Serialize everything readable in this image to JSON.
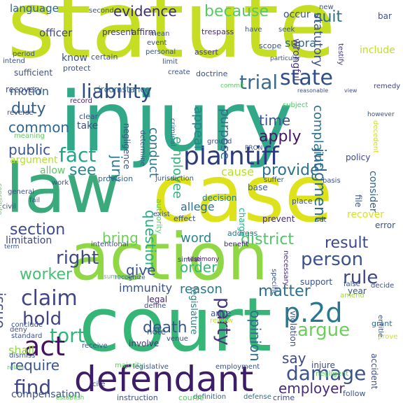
{
  "background": "#ffffff",
  "palette": [
    "#440154",
    "#3b528b",
    "#21918c",
    "#31b57b",
    "#5ec962",
    "#b5de2b",
    "#d8e219",
    "#fde725"
  ],
  "words": [
    {
      "text": "statute",
      "color": "#c5dd23"
    },
    {
      "text": "injury",
      "color": "#31a888"
    },
    {
      "text": "case",
      "color": "#dde21a"
    },
    {
      "text": "law",
      "color": "#3aaa7c"
    },
    {
      "text": "action",
      "color": "#8fd744"
    },
    {
      "text": "court",
      "color": "#36b676"
    },
    {
      "text": "defendant",
      "color": "#3d1d67"
    },
    {
      "text": "plaintiff",
      "color": "#2a3a7c"
    },
    {
      "text": "state",
      "color": "#2f4f8a"
    },
    {
      "text": "liability",
      "color": "#2c4a83"
    },
    {
      "text": "trial",
      "color": "#3b6a8d"
    },
    {
      "text": "because",
      "color": "#5ac864"
    },
    {
      "text": "evidence",
      "color": "#3c2f6f"
    },
    {
      "text": "suit",
      "color": "#2d6f8e"
    },
    {
      "text": "language",
      "color": "#31658e"
    },
    {
      "text": "statutory",
      "color": "#3b518b"
    },
    {
      "text": "supra",
      "color": "#31688e"
    },
    {
      "text": "wrongful",
      "color": "#443983"
    },
    {
      "text": "duty",
      "color": "#34608d"
    },
    {
      "text": "conduct",
      "color": "#2a788e"
    },
    {
      "text": "appeal",
      "color": "#26828e"
    },
    {
      "text": "time",
      "color": "#3a538b"
    },
    {
      "text": "complaint",
      "color": "#2c728e"
    },
    {
      "text": "common",
      "color": "#31688e"
    },
    {
      "text": "motion",
      "color": "#32648e"
    },
    {
      "text": "public",
      "color": "#3a548c"
    },
    {
      "text": "fact",
      "color": "#21a585"
    },
    {
      "text": "employee",
      "color": "#2db27d"
    },
    {
      "text": "purpose",
      "color": "#2e6e8e"
    },
    {
      "text": "apply",
      "color": "#481467"
    },
    {
      "text": "judgment",
      "color": "#2f6c8e"
    },
    {
      "text": "see",
      "color": "#23898e"
    },
    {
      "text": "jury",
      "color": "#2a778e"
    },
    {
      "text": "provide",
      "color": "#2c728e"
    },
    {
      "text": "section",
      "color": "#3e4a89"
    },
    {
      "text": "question",
      "color": "#28ae80"
    },
    {
      "text": "district",
      "color": "#50c46a"
    },
    {
      "text": "result",
      "color": "#3e4989"
    },
    {
      "text": "right",
      "color": "#3e4989"
    },
    {
      "text": "bring",
      "color": "#6ccd5a"
    },
    {
      "text": "person",
      "color": "#3b528b"
    },
    {
      "text": "worker",
      "color": "#44bf70"
    },
    {
      "text": "order",
      "color": "#35b779"
    },
    {
      "text": "give",
      "color": "#3b528b"
    },
    {
      "text": "rule",
      "color": "#3f4788"
    },
    {
      "text": "claim",
      "color": "#414487"
    },
    {
      "text": "immunity",
      "color": "#3a548c"
    },
    {
      "text": "matter",
      "color": "#2e6e8e"
    },
    {
      "text": "hold",
      "color": "#414487"
    },
    {
      "text": "party",
      "color": "#453581"
    },
    {
      "text": "p.2d",
      "color": "#2a768e"
    },
    {
      "text": "tort",
      "color": "#31b57b"
    },
    {
      "text": "argue",
      "color": "#6ccd5a"
    },
    {
      "text": "act",
      "color": "#471063"
    },
    {
      "text": "death",
      "color": "#39568c"
    },
    {
      "text": "damage",
      "color": "#3b528b"
    },
    {
      "text": "require",
      "color": "#39568c"
    },
    {
      "text": "opinion",
      "color": "#2f6c8e"
    },
    {
      "text": "find",
      "color": "#414487"
    },
    {
      "text": "employer",
      "color": "#472a7a"
    },
    {
      "text": "say",
      "color": "#3e4989"
    },
    {
      "text": "issue",
      "color": "#3e4989"
    },
    {
      "text": "cause",
      "color": "#b8de29"
    },
    {
      "text": "allege",
      "color": "#2e6e8e"
    },
    {
      "text": "reason",
      "color": "#2a788e"
    },
    {
      "text": "word",
      "color": "#24878e"
    },
    {
      "text": "legislature",
      "color": "#25848e"
    },
    {
      "text": "shall",
      "color": "#95d840"
    },
    {
      "text": "compensation",
      "color": "#3a548c"
    },
    {
      "text": "limitation",
      "color": "#3f4889"
    },
    {
      "text": "argument",
      "color": "#b5de2b"
    },
    {
      "text": "circumstance",
      "color": "#2f6b8e"
    },
    {
      "text": "recovery",
      "color": "#3e4a89"
    },
    {
      "text": "negligence",
      "color": "#3b528b"
    },
    {
      "text": "present",
      "color": "#453882"
    },
    {
      "text": "affirm",
      "color": "#482777"
    },
    {
      "text": "officer",
      "color": "#3f4788"
    },
    {
      "text": "know",
      "color": "#3b528b"
    },
    {
      "text": "certain",
      "color": "#3b528b"
    },
    {
      "text": "trespass",
      "color": "#482878"
    },
    {
      "text": "assert",
      "color": "#453882"
    },
    {
      "text": "include",
      "color": "#c0df25"
    },
    {
      "text": "testify",
      "color": "#453781"
    },
    {
      "text": "doctrine",
      "color": "#3d4e8a"
    },
    {
      "text": "commit",
      "color": "#5ec962"
    },
    {
      "text": "record",
      "color": "#482475"
    },
    {
      "text": "remedy",
      "color": "#3f4788"
    },
    {
      "text": "subject",
      "color": "#50c46a"
    },
    {
      "text": "criminal",
      "color": "#2e6e8e"
    },
    {
      "text": "policy",
      "color": "#404688"
    },
    {
      "text": "provision",
      "color": "#31668e"
    },
    {
      "text": "decision",
      "color": "#2a788e"
    },
    {
      "text": "jurisdiction",
      "color": "#3a548c"
    },
    {
      "text": "base",
      "color": "#33638d"
    },
    {
      "text": "consider",
      "color": "#33638d"
    },
    {
      "text": "file",
      "color": "#3a538b"
    },
    {
      "text": "recover",
      "color": "#d8e219"
    },
    {
      "text": "error",
      "color": "#3b528b"
    },
    {
      "text": "charge",
      "color": "#26ad81"
    },
    {
      "text": "prevent",
      "color": "#472d7b"
    },
    {
      "text": "address",
      "color": "#2a778e"
    },
    {
      "text": "benefit",
      "color": "#482475"
    },
    {
      "text": "intentional",
      "color": "#404688"
    },
    {
      "text": "necessary",
      "color": "#472d7b"
    },
    {
      "text": "testimony",
      "color": "#471365"
    },
    {
      "text": "similar",
      "color": "#443983"
    },
    {
      "text": "recognize",
      "color": "#3b528b"
    },
    {
      "text": "summary",
      "color": "#5ec962"
    },
    {
      "text": "legal",
      "color": "#481f70"
    },
    {
      "text": "define",
      "color": "#3e4989"
    },
    {
      "text": "review",
      "color": "#c2df23"
    },
    {
      "text": "note",
      "color": "#3b528b"
    },
    {
      "text": "involve",
      "color": "#46327e"
    },
    {
      "text": "venue",
      "color": "#3e4989"
    },
    {
      "text": "majority",
      "color": "#5ec962"
    },
    {
      "text": "legislative",
      "color": "#3b528b"
    },
    {
      "text": "employment",
      "color": "#3b528b"
    },
    {
      "text": "definition",
      "color": "#33638d"
    },
    {
      "text": "defense",
      "color": "#2e6e8e"
    },
    {
      "text": "crime",
      "color": "#3e4989"
    },
    {
      "text": "instruction",
      "color": "#3b528b"
    },
    {
      "text": "course",
      "color": "#5ec962"
    },
    {
      "text": "follow",
      "color": "#39568c"
    },
    {
      "text": "accident",
      "color": "#3b528b"
    },
    {
      "text": "injure",
      "color": "#3e4989"
    },
    {
      "text": "negligent",
      "color": "#5ec962"
    },
    {
      "text": "grant",
      "color": "#2e6e8e"
    },
    {
      "text": "prove",
      "color": "#d0e11c"
    },
    {
      "text": "entitle",
      "color": "#3b528b"
    },
    {
      "text": "decide",
      "color": "#3b528b"
    },
    {
      "text": "year",
      "color": "#3b528b"
    },
    {
      "text": "amend",
      "color": "#a0da39"
    },
    {
      "text": "false",
      "color": "#3b528b"
    },
    {
      "text": "violation",
      "color": "#3b528b"
    },
    {
      "text": "support",
      "color": "#3b528b"
    },
    {
      "text": "arise",
      "color": "#3b528b"
    },
    {
      "text": "specific",
      "color": "#3b528b"
    },
    {
      "text": "establish",
      "color": "#5ec962"
    },
    {
      "text": "cite",
      "color": "#3b528b"
    },
    {
      "text": "relate",
      "color": "#5ec962"
    },
    {
      "text": "dismiss",
      "color": "#3b528b"
    },
    {
      "text": "deny",
      "color": "#3b528b"
    },
    {
      "text": "conclude",
      "color": "#3b528b"
    },
    {
      "text": "standard",
      "color": "#3b528b"
    },
    {
      "text": "receive",
      "color": "#3b528b"
    },
    {
      "text": "term",
      "color": "#3b528b"
    },
    {
      "text": "civil",
      "color": "#3b528b"
    },
    {
      "text": "constitute",
      "color": "#5ec962"
    },
    {
      "text": "general",
      "color": "#3b528b"
    },
    {
      "text": "fail",
      "color": "#3b528b"
    },
    {
      "text": "work",
      "color": "#3b528b"
    },
    {
      "text": "allow",
      "color": "#5ec962"
    },
    {
      "text": "meaning",
      "color": "#5ec962"
    },
    {
      "text": "reverse",
      "color": "#3b528b"
    },
    {
      "text": "take",
      "color": "#3b528b"
    },
    {
      "text": "clear",
      "color": "#3b528b"
    },
    {
      "text": "determine",
      "color": "#3b528b"
    },
    {
      "text": "exist",
      "color": "#3b528b"
    },
    {
      "text": "authority",
      "color": "#5ec962"
    },
    {
      "text": "effect",
      "color": "#3b528b"
    },
    {
      "text": "place",
      "color": "#3b528b"
    },
    {
      "text": "set",
      "color": "#3b528b"
    },
    {
      "text": "basis",
      "color": "#3b528b"
    },
    {
      "text": "suffer",
      "color": "#3b528b"
    },
    {
      "text": "ground",
      "color": "#3b528b"
    },
    {
      "text": "PRON",
      "color": "#3b528b"
    },
    {
      "text": "however",
      "color": "#3b528b"
    },
    {
      "text": "decedent",
      "color": "#d0e11c"
    },
    {
      "text": "reasonable",
      "color": "#3b528b"
    },
    {
      "text": "view",
      "color": "#3b528b"
    },
    {
      "text": "sufficient",
      "color": "#3b528b"
    },
    {
      "text": "protect",
      "color": "#3b528b"
    },
    {
      "text": "intend",
      "color": "#3b528b"
    },
    {
      "text": "period",
      "color": "#3b528b"
    },
    {
      "text": "mean",
      "color": "#3b528b"
    },
    {
      "text": "event",
      "color": "#3b528b"
    },
    {
      "text": "personal",
      "color": "#3b528b"
    },
    {
      "text": "limit",
      "color": "#3b528b"
    },
    {
      "text": "create",
      "color": "#3b528b"
    },
    {
      "text": "scope",
      "color": "#3b528b"
    },
    {
      "text": "particular",
      "color": "#3b528b"
    },
    {
      "text": "have",
      "color": "#3b528b"
    },
    {
      "text": "seek",
      "color": "#3b528b"
    },
    {
      "text": "occur",
      "color": "#3b528b"
    },
    {
      "text": "new",
      "color": "#3b528b"
    },
    {
      "text": "bar",
      "color": "#3b528b"
    },
    {
      "text": "second",
      "color": "#3b528b"
    }
  ]
}
